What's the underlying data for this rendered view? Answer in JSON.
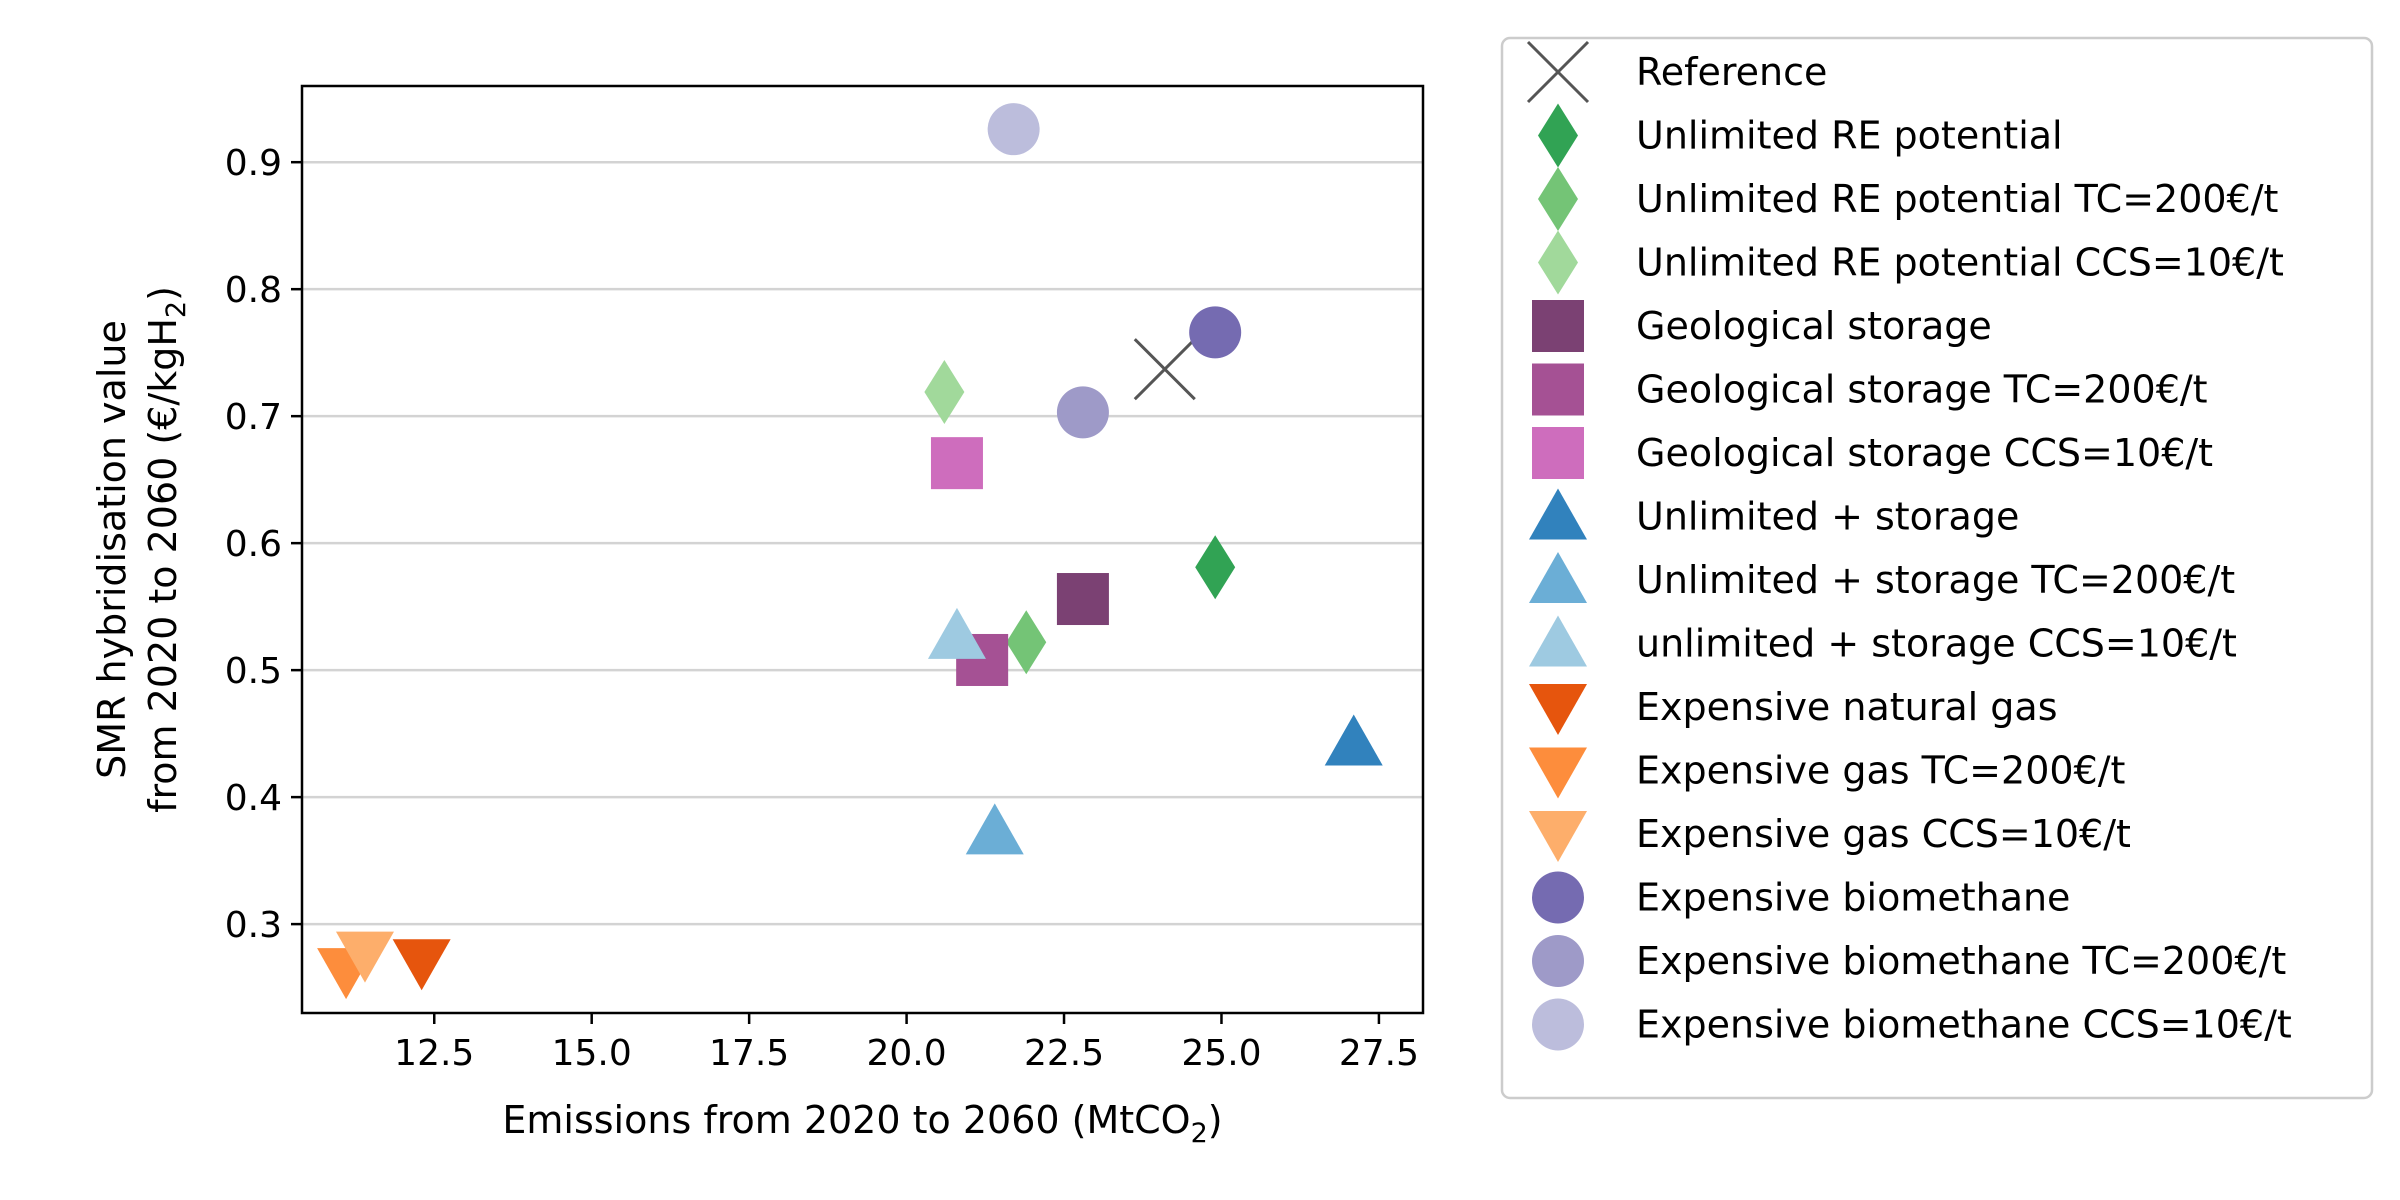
{
  "chart_data": {
    "type": "scatter",
    "xlabel": "Emissions from 2020 to 2060 (MtCO",
    "xlabel_sub": "2",
    "xlabel_tail": ")",
    "ylabel_line1": "SMR hybridisation value",
    "ylabel_line2": "from 2020 to 2060 (€/kgH",
    "ylabel_line2_sub": "2",
    "ylabel_line2_tail": ")",
    "xlim": [
      10.4,
      28.2
    ],
    "ylim": [
      0.23,
      0.96
    ],
    "xticks": [
      12.5,
      15.0,
      17.5,
      20.0,
      22.5,
      25.0,
      27.5
    ],
    "xtick_labels": [
      "12.5",
      "15.0",
      "17.5",
      "20.0",
      "22.5",
      "25.0",
      "27.5"
    ],
    "yticks": [
      0.3,
      0.4,
      0.5,
      0.6,
      0.7,
      0.8,
      0.9
    ],
    "ytick_labels": [
      "0.3",
      "0.4",
      "0.5",
      "0.6",
      "0.7",
      "0.8",
      "0.9"
    ],
    "grid": "horizontal",
    "legend_position": "outside-right",
    "series": [
      {
        "name": "Reference",
        "marker": "x",
        "color": "#555555",
        "x": 24.1,
        "y": 0.737
      },
      {
        "name": "Unlimited RE potential",
        "marker": "diamond",
        "color": "#31a354",
        "x": 24.9,
        "y": 0.581
      },
      {
        "name": "Unlimited RE potential TC=200€/t",
        "marker": "diamond",
        "color": "#74c476",
        "x": 21.9,
        "y": 0.522
      },
      {
        "name": "Unlimited RE potential CCS=10€/t",
        "marker": "diamond",
        "color": "#a1d99b",
        "x": 20.6,
        "y": 0.719
      },
      {
        "name": "Geological storage",
        "marker": "square",
        "color": "#7b4173",
        "x": 22.8,
        "y": 0.556
      },
      {
        "name": "Geological storage TC=200€/t",
        "marker": "square",
        "color": "#a55194",
        "x": 21.2,
        "y": 0.508
      },
      {
        "name": "Geological storage CCS=10€/t",
        "marker": "square",
        "color": "#ce6dbd",
        "x": 20.8,
        "y": 0.663
      },
      {
        "name": "Unlimited + storage",
        "marker": "triangle-up",
        "color": "#3182bd",
        "x": 27.1,
        "y": 0.443
      },
      {
        "name": "Unlimited + storage TC=200€/t",
        "marker": "triangle-up",
        "color": "#6baed6",
        "x": 21.4,
        "y": 0.373
      },
      {
        "name": "unlimited + storage CCS=10€/t",
        "marker": "triangle-up",
        "color": "#9ecae1",
        "x": 20.8,
        "y": 0.527
      },
      {
        "name": "Expensive natural gas",
        "marker": "triangle-down",
        "color": "#e6550d",
        "x": 12.3,
        "y": 0.27
      },
      {
        "name": "Expensive gas TC=200€/t",
        "marker": "triangle-down",
        "color": "#fd8d3c",
        "x": 11.1,
        "y": 0.263
      },
      {
        "name": "Expensive gas CCS=10€/t",
        "marker": "triangle-down",
        "color": "#fdae6b",
        "x": 11.4,
        "y": 0.276
      },
      {
        "name": "Expensive biomethane",
        "marker": "circle",
        "color": "#756bb1",
        "x": 24.9,
        "y": 0.766
      },
      {
        "name": "Expensive biomethane TC=200€/t",
        "marker": "circle",
        "color": "#9e9ac8",
        "x": 22.8,
        "y": 0.703
      },
      {
        "name": "Expensive biomethane CCS=10€/t",
        "marker": "circle",
        "color": "#bcbddc",
        "x": 21.7,
        "y": 0.926
      }
    ]
  }
}
